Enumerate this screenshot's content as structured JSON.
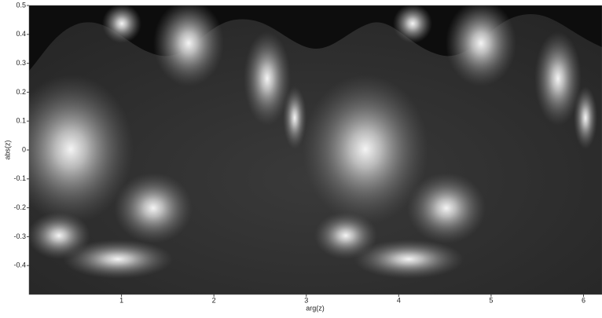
{
  "chart_data": {
    "type": "image",
    "x_label": "arg(z)",
    "y_label": "abs(z)",
    "xlim": [
      0,
      6.2
    ],
    "xticks": [
      1,
      2,
      3,
      4,
      5,
      6
    ],
    "ylim": [
      -0.5,
      0.5
    ],
    "yticks": [
      0.5,
      0.4,
      0.3,
      0.2,
      0.1,
      0,
      -0.1,
      -0.2,
      -0.3,
      -0.4
    ]
  }
}
